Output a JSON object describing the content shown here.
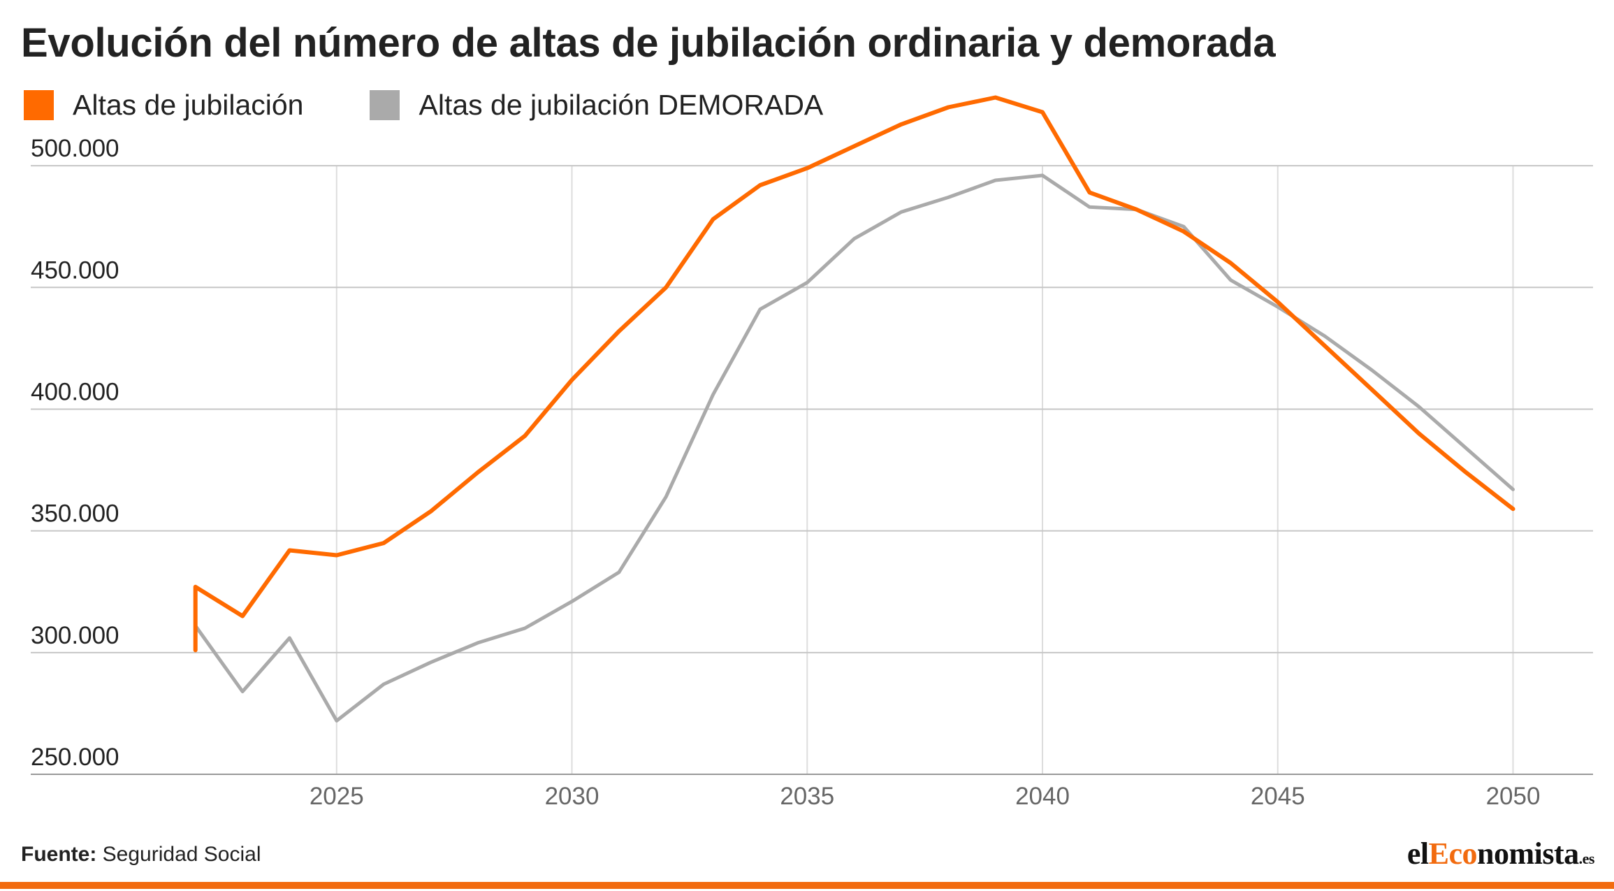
{
  "title": "Evolución del número de altas de jubilación ordinaria y demorada",
  "legend": [
    {
      "label": "Altas de jubilación",
      "color": "#ff6a00"
    },
    {
      "label": "Altas de jubilación DEMORADA",
      "color": "#aaaaaa"
    }
  ],
  "source": {
    "key": "Fuente:",
    "value": "Seguridad Social"
  },
  "brand": {
    "part1": "el",
    "part2": "Eco",
    "part3": "nomista",
    "part4": ".es"
  },
  "chart_data": {
    "type": "line",
    "title": "Evolución del número de altas de jubilación ordinaria y demorada",
    "xlabel": "",
    "ylabel": "",
    "xlim": [
      2018.5,
      2051.7
    ],
    "ylim": [
      248000,
      525000
    ],
    "yticks": [
      250000,
      300000,
      350000,
      400000,
      450000,
      500000
    ],
    "ytick_labels": [
      "250.000",
      "300.000",
      "350.000",
      "400.000",
      "450.000",
      "500.000"
    ],
    "xticks": [
      2025,
      2030,
      2035,
      2040,
      2045,
      2050
    ],
    "xtick_labels": [
      "2025",
      "2030",
      "2035",
      "2040",
      "2045",
      "2050"
    ],
    "grid": true,
    "legend_position": "top-left",
    "series": [
      {
        "name": "Altas de jubilación",
        "color": "#ff6a00",
        "points": [
          [
            2022,
            301000
          ],
          [
            2022,
            327000
          ],
          [
            2023,
            315000
          ],
          [
            2024,
            342000
          ],
          [
            2025,
            340000
          ],
          [
            2026,
            345000
          ],
          [
            2027,
            358000
          ],
          [
            2028,
            374000
          ],
          [
            2029,
            389000
          ],
          [
            2030,
            412000
          ],
          [
            2031,
            432000
          ],
          [
            2032,
            450000
          ],
          [
            2033,
            478000
          ],
          [
            2034,
            492000
          ],
          [
            2035,
            499000
          ],
          [
            2036,
            508000
          ],
          [
            2037,
            517000
          ],
          [
            2038,
            524000
          ],
          [
            2039,
            528000
          ],
          [
            2040,
            522000
          ],
          [
            2041,
            489000
          ],
          [
            2042,
            482000
          ],
          [
            2043,
            473000
          ],
          [
            2044,
            460000
          ],
          [
            2045,
            444000
          ],
          [
            2046,
            426000
          ],
          [
            2047,
            408000
          ],
          [
            2048,
            390000
          ],
          [
            2049,
            374000
          ],
          [
            2050,
            359000
          ]
        ]
      },
      {
        "name": "Altas de jubilación DEMORADA",
        "color": "#aaaaaa",
        "points": [
          [
            2022,
            302000
          ],
          [
            2022,
            311000
          ],
          [
            2023,
            284000
          ],
          [
            2024,
            306000
          ],
          [
            2025,
            272000
          ],
          [
            2026,
            287000
          ],
          [
            2027,
            296000
          ],
          [
            2028,
            304000
          ],
          [
            2029,
            310000
          ],
          [
            2030,
            321000
          ],
          [
            2031,
            333000
          ],
          [
            2032,
            364000
          ],
          [
            2033,
            406000
          ],
          [
            2034,
            441000
          ],
          [
            2035,
            452000
          ],
          [
            2036,
            470000
          ],
          [
            2037,
            481000
          ],
          [
            2038,
            487000
          ],
          [
            2039,
            494000
          ],
          [
            2040,
            496000
          ],
          [
            2041,
            483000
          ],
          [
            2042,
            482000
          ],
          [
            2043,
            475000
          ],
          [
            2044,
            453000
          ],
          [
            2045,
            442000
          ],
          [
            2046,
            430000
          ],
          [
            2047,
            416000
          ],
          [
            2048,
            401000
          ],
          [
            2049,
            384000
          ],
          [
            2050,
            367000
          ]
        ]
      }
    ]
  }
}
